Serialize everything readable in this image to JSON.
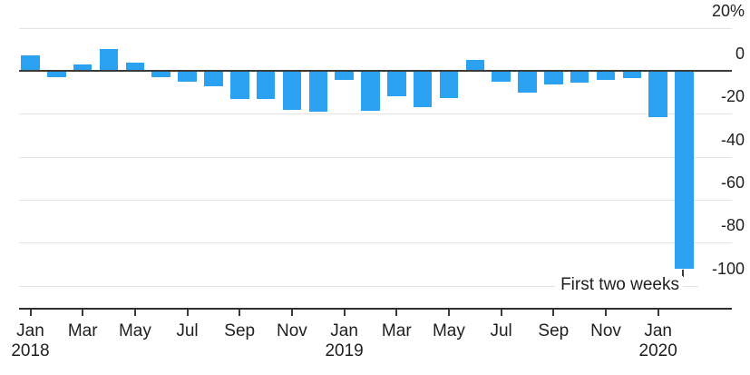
{
  "chart_data": {
    "type": "bar",
    "unit": "%",
    "ylim": [
      -100,
      20
    ],
    "grid": "horizontal",
    "y_axis_side": "right",
    "bar_color": "#2ba1f1",
    "categories": [
      "Jan 2018",
      "Feb 2018",
      "Mar 2018",
      "Apr 2018",
      "May 2018",
      "Jun 2018",
      "Jul 2018",
      "Aug 2018",
      "Sep 2018",
      "Oct 2018",
      "Nov 2018",
      "Dec 2018",
      "Jan 2019",
      "Feb 2019",
      "Mar 2019",
      "Apr 2019",
      "May 2019",
      "Jun 2019",
      "Jul 2019",
      "Aug 2019",
      "Sep 2019",
      "Oct 2019",
      "Nov 2019",
      "Dec 2019",
      "Jan 2020",
      "First two weeks of Feb 2020"
    ],
    "values": [
      7,
      -3,
      3,
      10,
      4,
      -3,
      -5,
      -7,
      -13,
      -13,
      -18,
      -19,
      -4,
      -18.5,
      -12,
      -17,
      -12.5,
      5,
      -5,
      -10,
      -6.5,
      -5.5,
      -4,
      -3.5,
      -21.5,
      -92
    ],
    "y_ticks": [
      {
        "label": "20%",
        "value": 20
      },
      {
        "label": "0",
        "value": 0
      },
      {
        "label": "-20",
        "value": -20
      },
      {
        "label": "-40",
        "value": -40
      },
      {
        "label": "-60",
        "value": -60
      },
      {
        "label": "-80",
        "value": -80
      },
      {
        "label": "-100",
        "value": -100
      }
    ],
    "x_ticks": [
      {
        "label": "Jan",
        "year": "2018",
        "index": 0
      },
      {
        "label": "Mar",
        "index": 2
      },
      {
        "label": "May",
        "index": 4
      },
      {
        "label": "Jul",
        "index": 6
      },
      {
        "label": "Sep",
        "index": 8
      },
      {
        "label": "Nov",
        "index": 10
      },
      {
        "label": "Jan",
        "year": "2019",
        "index": 12
      },
      {
        "label": "Mar",
        "index": 14
      },
      {
        "label": "May",
        "index": 16
      },
      {
        "label": "Jul",
        "index": 18
      },
      {
        "label": "Sep",
        "index": 20
      },
      {
        "label": "Nov",
        "index": 22
      },
      {
        "label": "Jan",
        "year": "2020",
        "index": 24
      }
    ],
    "annotation": {
      "text": "First two weeks",
      "index": 25,
      "value": -92
    }
  },
  "colors": {
    "bar": "#2ba1f1",
    "axis": "#3b3b3b",
    "grid": "#e4e4e4",
    "text": "#1f1f1f",
    "background": "#ffffff"
  }
}
